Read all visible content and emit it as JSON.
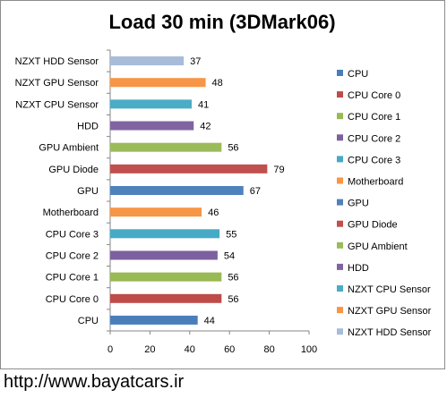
{
  "chart_data": {
    "type": "bar",
    "orientation": "horizontal",
    "title": "Load 30 min (3DMark06)",
    "xlabel": "",
    "ylabel": "",
    "xlim": [
      0,
      100
    ],
    "xticks": [
      0,
      20,
      40,
      60,
      80,
      100
    ],
    "grid": false,
    "legend_position": "right",
    "categories": [
      "CPU",
      "CPU Core 0",
      "CPU Core 1",
      "CPU Core 2",
      "CPU Core 3",
      "Motherboard",
      "GPU",
      "GPU Diode",
      "GPU Ambient",
      "HDD",
      "NZXT CPU Sensor",
      "NZXT GPU Sensor",
      "NZXT HDD Sensor"
    ],
    "values": [
      44,
      56,
      56,
      54,
      55,
      46,
      67,
      79,
      56,
      42,
      41,
      48,
      37
    ],
    "colors": [
      "#4a7ebb",
      "#be4b48",
      "#98b954",
      "#7d60a0",
      "#46aac5",
      "#f79646",
      "#4f81bd",
      "#c0504d",
      "#9bbb59",
      "#8064a2",
      "#4bacc6",
      "#f79646",
      "#a7bcd9"
    ],
    "legend": [
      "CPU",
      "CPU Core 0",
      "CPU Core 1",
      "CPU Core 2",
      "CPU Core 3",
      "Motherboard",
      "GPU",
      "GPU Diode",
      "GPU Ambient",
      "HDD",
      "NZXT CPU Sensor",
      "NZXT GPU Sensor",
      "NZXT HDD Sensor"
    ]
  },
  "footer": {
    "url": "http://www.bayatcars.ir"
  }
}
